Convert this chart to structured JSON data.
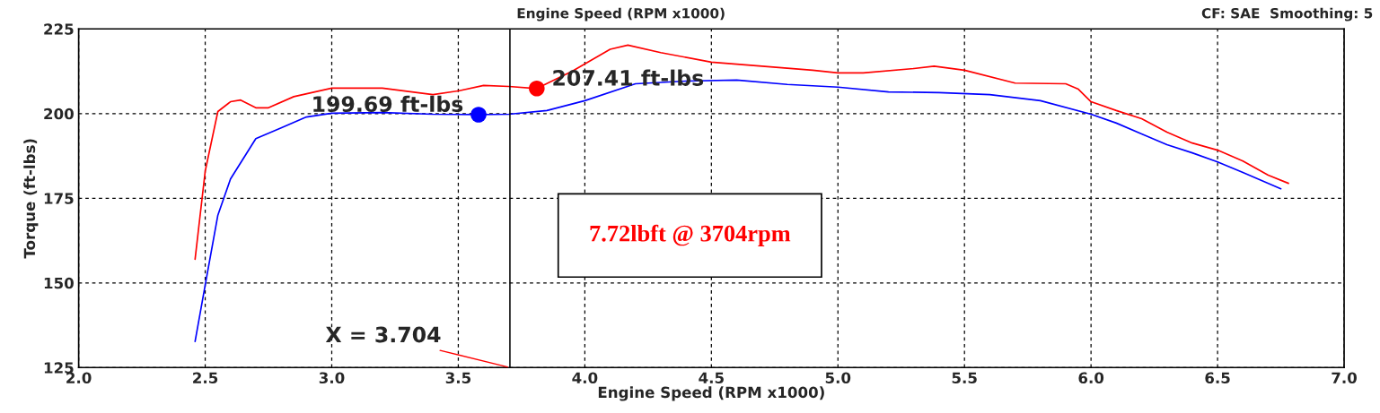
{
  "chart_data": {
    "type": "line",
    "title": "Engine Speed (RPM x1000)",
    "xlabel": "Engine Speed (RPM x1000)",
    "ylabel": "Torque (ft-lbs)",
    "xlim": [
      2.0,
      7.0
    ],
    "ylim": [
      125,
      225
    ],
    "xticks": [
      {
        "value": 2.0,
        "label": "2.0"
      },
      {
        "value": 2.5,
        "label": "2.5"
      },
      {
        "value": 3.0,
        "label": "3.0"
      },
      {
        "value": 3.5,
        "label": "3.5"
      },
      {
        "value": 4.0,
        "label": "4.0"
      },
      {
        "value": 4.5,
        "label": "4.5"
      },
      {
        "value": 5.0,
        "label": "5.0"
      },
      {
        "value": 5.5,
        "label": "5.5"
      },
      {
        "value": 6.0,
        "label": "6.0"
      },
      {
        "value": 6.5,
        "label": "6.5"
      },
      {
        "value": 7.0,
        "label": "7.0"
      }
    ],
    "yticks": [
      125,
      150,
      175,
      200,
      225
    ],
    "grid": true,
    "legend": false,
    "line_style": "solid",
    "series": [
      {
        "color": "#ff0000",
        "x": [
          2.46,
          2.5,
          2.55,
          2.6,
          2.64,
          2.7,
          2.75,
          2.85,
          3.0,
          3.2,
          3.4,
          3.5,
          3.6,
          3.7,
          3.81,
          3.95,
          4.1,
          4.17,
          4.3,
          4.5,
          4.7,
          4.9,
          5.0,
          5.1,
          5.3,
          5.38,
          5.5,
          5.7,
          5.9,
          5.95,
          6.0,
          6.1,
          6.2,
          6.3,
          6.4,
          6.5,
          6.6,
          6.7,
          6.78
        ],
        "values": [
          157,
          183,
          200.6,
          203.5,
          204,
          201.7,
          201.7,
          205,
          207.5,
          207.5,
          205.6,
          206.7,
          208.3,
          208,
          207.4,
          212.5,
          219,
          220.2,
          218,
          215.2,
          214,
          212.8,
          212,
          212,
          213.3,
          214,
          212.8,
          209,
          208.8,
          207.2,
          203.5,
          200.9,
          198.5,
          194.5,
          191.3,
          189.2,
          186,
          181.8,
          179.4
        ]
      },
      {
        "color": "#0000ff",
        "x": [
          2.46,
          2.5,
          2.55,
          2.6,
          2.7,
          2.8,
          2.9,
          3.0,
          3.2,
          3.4,
          3.58,
          3.7,
          3.85,
          4.0,
          4.2,
          4.4,
          4.6,
          4.8,
          5.0,
          5.2,
          5.4,
          5.6,
          5.8,
          6.0,
          6.1,
          6.2,
          6.3,
          6.4,
          6.5,
          6.6,
          6.75
        ],
        "values": [
          132.7,
          149.4,
          170,
          180.7,
          192.6,
          195.8,
          199,
          200.1,
          200.3,
          199.8,
          199.7,
          199.8,
          200.9,
          203.8,
          208.8,
          209.6,
          209.9,
          208.6,
          207.8,
          206.4,
          206.2,
          205.6,
          203.8,
          199.8,
          197.2,
          194,
          190.8,
          188.4,
          185.7,
          182.6,
          177.8
        ]
      },
      {
        "type": "scatter",
        "marker": "circle",
        "color": "#ff0000",
        "x": [
          3.81
        ],
        "values": [
          207.41
        ]
      },
      {
        "type": "scatter",
        "marker": "circle",
        "color": "#0000ff",
        "x": [
          3.58
        ],
        "values": [
          199.69
        ]
      }
    ],
    "ref_lines": [
      {
        "axis": "x",
        "value": 3.704,
        "label": "X = 3.704",
        "color": "#000000",
        "line_style": "solid"
      }
    ],
    "annotations": [
      {
        "text": "207.41 ft-lbs",
        "x": 3.81,
        "y": 207.41
      },
      {
        "text": "199.69 ft-lbs",
        "x": 3.58,
        "y": 199.69
      },
      "7.72lbft @ 3704rpm",
      "CF: SAE  Smoothing: 5"
    ]
  }
}
